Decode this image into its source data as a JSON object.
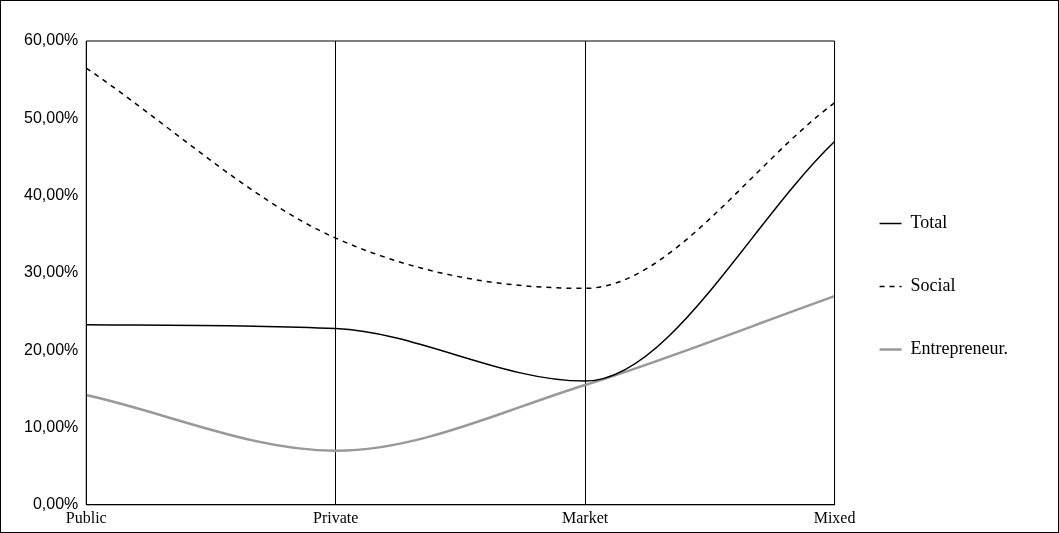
{
  "chart_data": {
    "type": "line",
    "categories": [
      "Public",
      "Private",
      "Market",
      "Mixed"
    ],
    "series": [
      {
        "name": "Total",
        "color": "#000000",
        "values": [
          23.3,
          22.8,
          16,
          47
        ],
        "line_style": "solid"
      },
      {
        "name": "Social",
        "color": "#000000",
        "values": [
          56.5,
          34.5,
          28,
          52
        ],
        "line_style": "dashed"
      },
      {
        "name": "Entrepreneur.",
        "color": "#999999",
        "values": [
          14.2,
          7,
          15.5,
          27
        ],
        "line_style": "solid"
      }
    ],
    "ylim": [
      0,
      60
    ],
    "yticks": [
      {
        "value": 0,
        "label": "0,00%"
      },
      {
        "value": 10,
        "label": "10,00%"
      },
      {
        "value": 20,
        "label": "20,00%"
      },
      {
        "value": 30,
        "label": "30,00%"
      },
      {
        "value": 40,
        "label": "40,00%"
      },
      {
        "value": 50,
        "label": "50,00%"
      },
      {
        "value": 60,
        "label": "60,00%"
      }
    ],
    "grid": "x",
    "legend": "right",
    "marker": "none"
  }
}
